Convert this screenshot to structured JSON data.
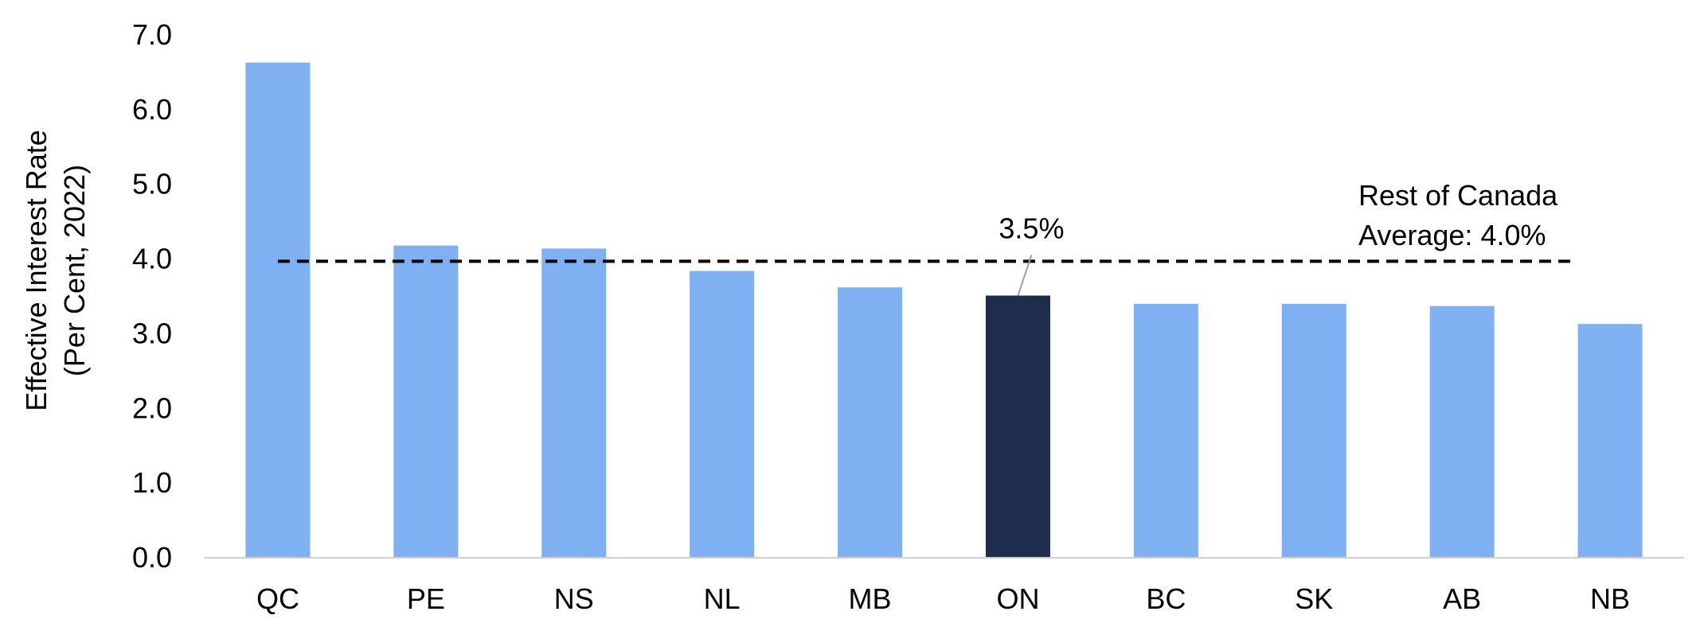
{
  "chart_data": {
    "type": "bar",
    "title": "",
    "categories": [
      "QC",
      "PE",
      "NS",
      "NL",
      "MB",
      "ON",
      "BC",
      "SK",
      "AB",
      "NB"
    ],
    "values": [
      6.62,
      4.17,
      4.13,
      3.83,
      3.61,
      3.5,
      3.39,
      3.39,
      3.36,
      3.12
    ],
    "highlight_category": "ON",
    "colors": {
      "bar": "#7fb0f2",
      "highlight": "#1e2d4d",
      "average_line": "#000000",
      "axis": "#d0d0d0",
      "leader_line": "#a0a0a0"
    },
    "ylabel_lines": [
      "Effective Interest Rate",
      "(Per Cent, 2022)"
    ],
    "xlabel": "",
    "ylim": [
      0,
      7
    ],
    "yticks": [
      "0.0",
      "1.0",
      "2.0",
      "3.0",
      "4.0",
      "5.0",
      "6.0",
      "7.0"
    ],
    "grid": false,
    "legend": "none",
    "reference_line": {
      "value": 3.96,
      "style": "dashed",
      "label_lines": [
        "Rest of Canada",
        "Average: 4.0%"
      ]
    },
    "data_label": {
      "category": "ON",
      "text": "3.5%"
    }
  }
}
